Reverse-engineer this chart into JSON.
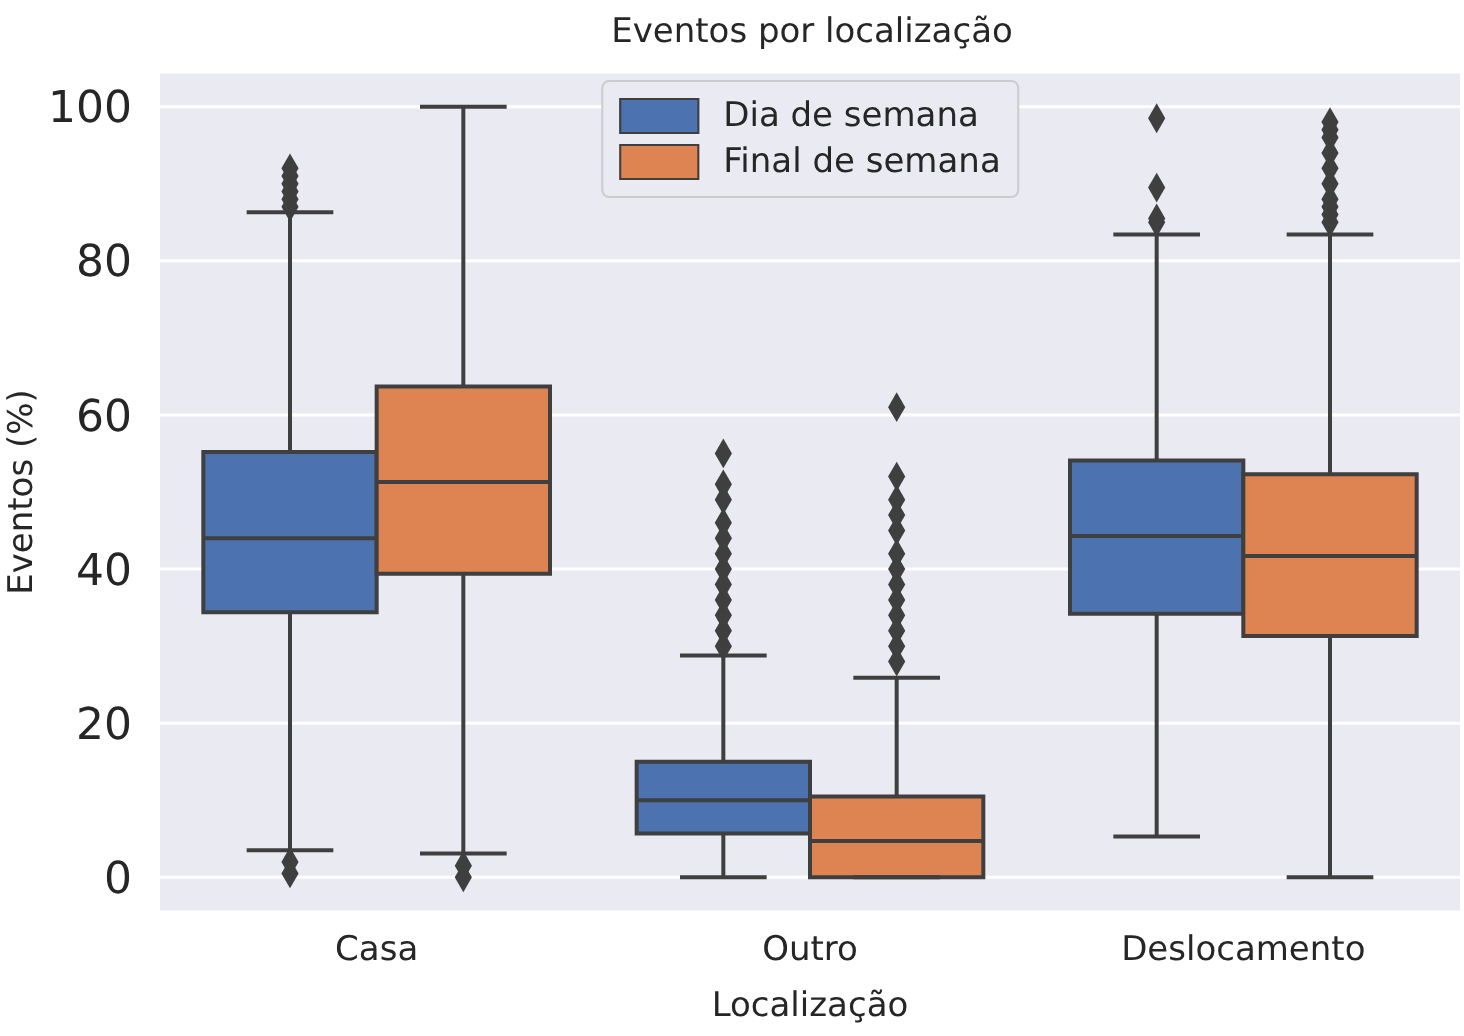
{
  "chart_data": {
    "type": "box",
    "title": "Eventos por localização",
    "xlabel": "Localização",
    "ylabel": "Eventos (%)",
    "categories": [
      "Casa",
      "Outro",
      "Deslocamento"
    ],
    "series": [
      {
        "name": "Dia de semana",
        "color": "#4c72b0",
        "boxes": [
          {
            "low": 3.5,
            "q1": 34.4,
            "median": 44,
            "q3": 55.2,
            "high": 86.3,
            "outliers": [
              0.5,
              2,
              87,
              88,
              89,
              90,
              91,
              92
            ]
          },
          {
            "low": 0,
            "q1": 5.7,
            "median": 10,
            "q3": 15,
            "high": 28.8,
            "outliers": [
              30,
              32,
              34,
              36,
              38,
              40,
              42,
              44,
              46,
              49,
              51,
              55
            ]
          },
          {
            "low": 5.3,
            "q1": 34.2,
            "median": 44.3,
            "q3": 54.1,
            "high": 83.4,
            "outliers": [
              85,
              85.5,
              89.5,
              98.5
            ]
          }
        ]
      },
      {
        "name": "Final de semana",
        "color": "#dd8452",
        "boxes": [
          {
            "low": 3.1,
            "q1": 39.4,
            "median": 51.3,
            "q3": 63.7,
            "high": 100,
            "outliers": [
              0,
              1.5
            ]
          },
          {
            "low": 0,
            "q1": 0,
            "median": 4.7,
            "q3": 10.5,
            "high": 25.9,
            "outliers": [
              28,
              30,
              32,
              34,
              36,
              38,
              40,
              42,
              45,
              47,
              49,
              52,
              61
            ]
          },
          {
            "low": 0,
            "q1": 31.3,
            "median": 41.7,
            "q3": 52.3,
            "high": 83.4,
            "outliers": [
              85,
              86,
              87,
              88,
              90,
              92,
              94,
              96,
              97,
              98
            ]
          }
        ]
      }
    ],
    "ylim": [
      -4.5,
      104.5
    ],
    "yticks": [
      0,
      20,
      40,
      60,
      80,
      100
    ],
    "grid": "y",
    "legend": "top"
  }
}
